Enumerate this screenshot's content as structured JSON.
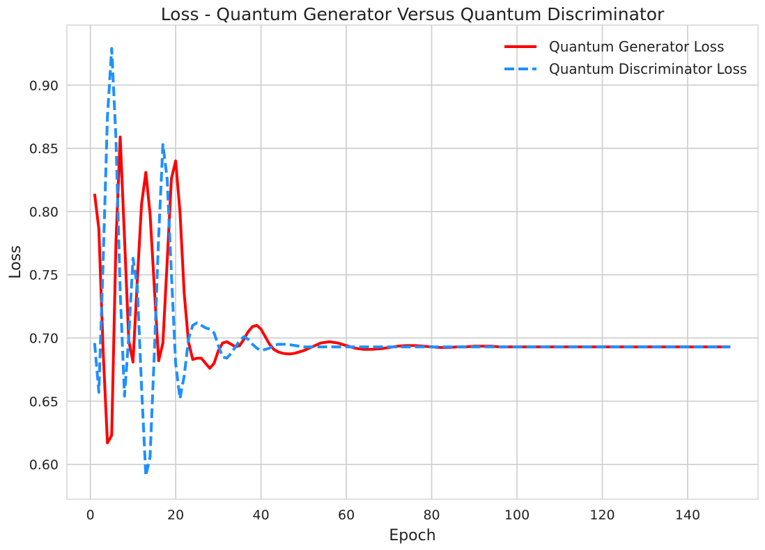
{
  "chart_data": {
    "type": "line",
    "title": "Loss - Quantum Generator Versus Quantum Discriminator",
    "xlabel": "Epoch",
    "ylabel": "Loss",
    "xlim": [
      -5.5,
      156.5
    ],
    "ylim": [
      0.5725,
      0.9475
    ],
    "xticks": [
      0,
      20,
      40,
      60,
      80,
      100,
      120,
      140
    ],
    "yticks": [
      0.6,
      0.65,
      0.7,
      0.75,
      0.8,
      0.85,
      0.9
    ],
    "xtick_labels": [
      "0",
      "20",
      "40",
      "60",
      "80",
      "100",
      "120",
      "140"
    ],
    "ytick_labels": [
      "0.60",
      "0.65",
      "0.70",
      "0.75",
      "0.80",
      "0.85",
      "0.90"
    ],
    "grid": true,
    "legend_position": "top-right",
    "series": [
      {
        "name": "Quantum Generator Loss",
        "color": "#ff0000",
        "style": "solid",
        "x": [
          1,
          2,
          3,
          4,
          5,
          6,
          7,
          8,
          9,
          10,
          11,
          12,
          13,
          14,
          15,
          16,
          17,
          18,
          19,
          20,
          21,
          22,
          23,
          24,
          25,
          26,
          27,
          28,
          29,
          30,
          31,
          32,
          33,
          34,
          35,
          36,
          37,
          38,
          39,
          40,
          41,
          42,
          43,
          44,
          45,
          46,
          47,
          48,
          50,
          52,
          54,
          56,
          58,
          60,
          62,
          64,
          66,
          68,
          70,
          72,
          74,
          76,
          78,
          80,
          82,
          84,
          86,
          88,
          90,
          92,
          94,
          96,
          98,
          100,
          102,
          104,
          106,
          108,
          110,
          115,
          120,
          125,
          130,
          135,
          140,
          145,
          150
        ],
        "y": [
          0.814,
          0.786,
          0.69,
          0.617,
          0.623,
          0.775,
          0.859,
          0.779,
          0.698,
          0.681,
          0.745,
          0.806,
          0.831,
          0.798,
          0.74,
          0.682,
          0.696,
          0.76,
          0.826,
          0.84,
          0.8,
          0.735,
          0.697,
          0.683,
          0.684,
          0.684,
          0.68,
          0.676,
          0.68,
          0.69,
          0.696,
          0.697,
          0.695,
          0.693,
          0.694,
          0.699,
          0.705,
          0.709,
          0.71,
          0.707,
          0.701,
          0.695,
          0.691,
          0.689,
          0.688,
          0.6875,
          0.6875,
          0.688,
          0.69,
          0.693,
          0.696,
          0.697,
          0.696,
          0.694,
          0.692,
          0.691,
          0.691,
          0.6915,
          0.6925,
          0.6935,
          0.694,
          0.694,
          0.6935,
          0.693,
          0.6925,
          0.6925,
          0.693,
          0.693,
          0.6935,
          0.6935,
          0.6935,
          0.693,
          0.693,
          0.693,
          0.693,
          0.693,
          0.693,
          0.693,
          0.693,
          0.693,
          0.693,
          0.693,
          0.693,
          0.693,
          0.693,
          0.693,
          0.693
        ]
      },
      {
        "name": "Quantum Discriminator Loss",
        "color": "#1e90ff",
        "style": "dashed",
        "x": [
          1,
          2,
          3,
          4,
          5,
          6,
          7,
          8,
          9,
          10,
          11,
          12,
          13,
          14,
          15,
          16,
          17,
          18,
          19,
          20,
          21,
          22,
          23,
          24,
          25,
          26,
          27,
          28,
          29,
          30,
          31,
          32,
          33,
          34,
          35,
          36,
          37,
          38,
          39,
          40,
          41,
          42,
          43,
          44,
          45,
          46,
          47,
          48,
          50,
          52,
          54,
          56,
          58,
          60,
          65,
          70,
          75,
          80,
          90,
          100,
          110,
          120,
          130,
          140,
          150
        ],
        "y": [
          0.696,
          0.657,
          0.76,
          0.875,
          0.929,
          0.858,
          0.737,
          0.654,
          0.701,
          0.763,
          0.741,
          0.661,
          0.591,
          0.606,
          0.688,
          0.78,
          0.853,
          0.826,
          0.751,
          0.68,
          0.652,
          0.67,
          0.699,
          0.71,
          0.712,
          0.71,
          0.708,
          0.707,
          0.704,
          0.694,
          0.685,
          0.684,
          0.688,
          0.693,
          0.698,
          0.701,
          0.699,
          0.695,
          0.692,
          0.69,
          0.691,
          0.692,
          0.694,
          0.695,
          0.695,
          0.695,
          0.6945,
          0.694,
          0.693,
          0.693,
          0.693,
          0.693,
          0.693,
          0.693,
          0.693,
          0.693,
          0.693,
          0.693,
          0.693,
          0.693,
          0.693,
          0.693,
          0.693,
          0.693,
          0.693
        ]
      }
    ]
  }
}
